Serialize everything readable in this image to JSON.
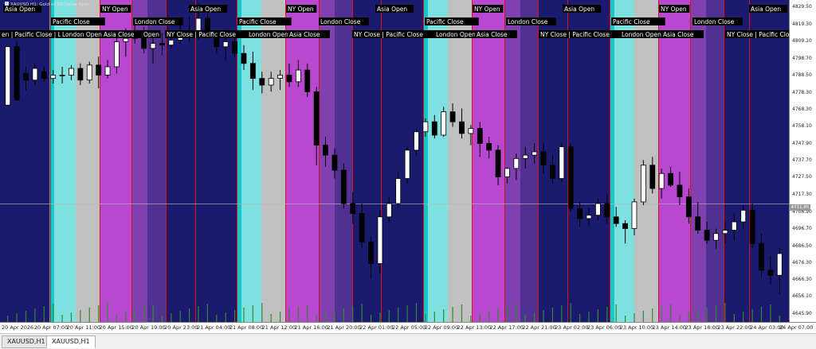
{
  "title": "XAUUSD.H1: Gold vs US Dollar Spot",
  "tabs": [
    {
      "label": "XAUUSD,H1",
      "active": false
    },
    {
      "label": "XAUUSD,H1",
      "active": true
    }
  ],
  "price_marker": "4711.85",
  "session_labels": [
    "Asia Open",
    "Pacific Close",
    "NY Open",
    "London Close",
    "Asia Open",
    "NY Open",
    "Pacific Close",
    "London Close",
    "Asia Open",
    "NY Open",
    "Pacific Close",
    "London Close",
    "Asia Open",
    "NY Open",
    "Pacific Close",
    "London Close",
    "Asia Open",
    "en | Pacific Close | L",
    "London Open",
    "Asia Close",
    "Open",
    "NY Close | Pacific Close",
    "London Open",
    "Asia Close",
    "NY Close | Pacific Close",
    "London Open",
    "Asia Close",
    "NY Close | Pacific Close",
    "London Open",
    "Asia Close",
    "NY Close | Pacific Close"
  ],
  "colors": {
    "background": "#1a1a6e",
    "cyan": "#18c8c8",
    "light_cyan": "#7fe0e0",
    "gray": "#c0c0c0",
    "magenta": "#b848d0",
    "purple": "#8040b0",
    "dark_purple": "#503090",
    "session_line": "#e01010",
    "volume": "#2e8b2e",
    "bull": "#ffffff",
    "bear": "#000000"
  },
  "chart_data": {
    "type": "candlestick",
    "title": "XAUUSD.H1: Gold vs US Dollar Spot",
    "yticks": [
      "4829.50",
      "4819.30",
      "4809.10",
      "4798.70",
      "4788.50",
      "4778.30",
      "4768.30",
      "4758.10",
      "4747.90",
      "4737.70",
      "4727.50",
      "4717.30",
      "4706.90",
      "4696.70",
      "4686.50",
      "4676.30",
      "4666.30",
      "4656.10",
      "4645.90"
    ],
    "xticks": [
      "20 Apr 2026",
      "20 Apr 07:00",
      "20 Apr 11:00",
      "20 Apr 15:00",
      "20 Apr 19:00",
      "20 Apr 23:00",
      "21 Apr 04:00",
      "21 Apr 08:00",
      "21 Apr 12:00",
      "21 Apr 16:00",
      "21 Apr 20:00",
      "22 Apr 01:00",
      "22 Apr 05:00",
      "22 Apr 09:00",
      "22 Apr 13:00",
      "22 Apr 17:00",
      "22 Apr 21:00",
      "23 Apr 02:00",
      "23 Apr 06:00",
      "23 Apr 10:00",
      "23 Apr 14:00",
      "23 Apr 18:00",
      "23 Apr 22:00",
      "24 Apr 03:00",
      "24 Apr 07:00"
    ],
    "current_price": 4711.85,
    "ylim": [
      4641,
      4834
    ],
    "candles": [
      [
        4771,
        4806,
        4771,
        4806
      ],
      [
        4806,
        4809,
        4774,
        4774
      ],
      [
        4790,
        4794,
        4780,
        4786
      ],
      [
        4786,
        4796,
        4783,
        4793
      ],
      [
        4791,
        4794,
        4785,
        4787
      ],
      [
        4787,
        4792,
        4784,
        4789
      ],
      [
        4789,
        4794,
        4784,
        4789
      ],
      [
        4789,
        4795,
        4786,
        4793
      ],
      [
        4793,
        4796,
        4783,
        4786
      ],
      [
        4786,
        4797,
        4784,
        4795
      ],
      [
        4795,
        4800,
        4781,
        4789
      ],
      [
        4789,
        4798,
        4787,
        4794
      ],
      [
        4794,
        4812,
        4790,
        4809
      ],
      [
        4809,
        4817,
        4800,
        4811
      ],
      [
        4811,
        4819,
        4808,
        4815
      ],
      [
        4815,
        4818,
        4802,
        4805
      ],
      [
        4805,
        4811,
        4796,
        4808
      ],
      [
        4808,
        4814,
        4801,
        4807
      ],
      [
        4807,
        4813,
        4805,
        4810
      ],
      [
        4810,
        4820,
        4808,
        4815
      ],
      [
        4815,
        4824,
        4809,
        4812
      ],
      [
        4812,
        4832,
        4810,
        4823
      ],
      [
        4823,
        4826,
        4812,
        4814
      ],
      [
        4814,
        4816,
        4802,
        4806
      ],
      [
        4806,
        4816,
        4798,
        4809
      ],
      [
        4809,
        4814,
        4800,
        4802
      ],
      [
        4802,
        4807,
        4792,
        4796
      ],
      [
        4796,
        4803,
        4780,
        4787
      ],
      [
        4787,
        4791,
        4778,
        4783
      ],
      [
        4783,
        4791,
        4779,
        4787
      ],
      [
        4787,
        4792,
        4780,
        4789
      ],
      [
        4789,
        4796,
        4782,
        4785
      ],
      [
        4785,
        4798,
        4782,
        4792
      ],
      [
        4792,
        4796,
        4776,
        4779
      ],
      [
        4779,
        4782,
        4735,
        4747
      ],
      [
        4747,
        4752,
        4734,
        4741
      ],
      [
        4741,
        4745,
        4727,
        4732
      ],
      [
        4732,
        4736,
        4709,
        4712
      ],
      [
        4712,
        4719,
        4700,
        4706
      ],
      [
        4706,
        4712,
        4685,
        4689
      ],
      [
        4689,
        4692,
        4667,
        4676
      ],
      [
        4676,
        4708,
        4670,
        4704
      ],
      [
        4704,
        4716,
        4701,
        4712
      ],
      [
        4712,
        4731,
        4710,
        4727
      ],
      [
        4727,
        4746,
        4724,
        4744
      ],
      [
        4744,
        4757,
        4741,
        4755
      ],
      [
        4755,
        4763,
        4752,
        4761
      ],
      [
        4761,
        4765,
        4751,
        4753
      ],
      [
        4753,
        4770,
        4752,
        4767
      ],
      [
        4767,
        4772,
        4758,
        4761
      ],
      [
        4761,
        4769,
        4751,
        4754
      ],
      [
        4754,
        4759,
        4747,
        4757
      ],
      [
        4757,
        4761,
        4740,
        4748
      ],
      [
        4748,
        4752,
        4739,
        4744
      ],
      [
        4744,
        4747,
        4723,
        4728
      ],
      [
        4728,
        4734,
        4724,
        4733
      ],
      [
        4733,
        4742,
        4726,
        4739
      ],
      [
        4739,
        4746,
        4733,
        4741
      ],
      [
        4741,
        4748,
        4736,
        4743
      ],
      [
        4743,
        4748,
        4730,
        4735
      ],
      [
        4735,
        4741,
        4724,
        4727
      ],
      [
        4727,
        4748,
        4725,
        4746
      ],
      [
        4746,
        4748,
        4707,
        4709
      ],
      [
        4709,
        4713,
        4698,
        4703
      ],
      [
        4703,
        4709,
        4699,
        4705
      ],
      [
        4705,
        4715,
        4702,
        4712
      ],
      [
        4712,
        4718,
        4700,
        4704
      ],
      [
        4704,
        4710,
        4698,
        4700
      ],
      [
        4700,
        4702,
        4688,
        4697
      ],
      [
        4697,
        4715,
        4693,
        4713
      ],
      [
        4713,
        4738,
        4711,
        4735
      ],
      [
        4735,
        4740,
        4718,
        4721
      ],
      [
        4721,
        4733,
        4715,
        4730
      ],
      [
        4730,
        4734,
        4722,
        4723
      ],
      [
        4723,
        4731,
        4711,
        4716
      ],
      [
        4716,
        4721,
        4700,
        4704
      ],
      [
        4704,
        4713,
        4694,
        4696
      ],
      [
        4696,
        4701,
        4688,
        4690
      ],
      [
        4690,
        4697,
        4685,
        4694
      ],
      [
        4694,
        4701,
        4688,
        4696
      ],
      [
        4696,
        4706,
        4690,
        4701
      ],
      [
        4701,
        4711,
        4697,
        4708
      ],
      [
        4708,
        4712,
        4685,
        4688
      ],
      [
        4688,
        4694,
        4668,
        4672
      ],
      [
        4672,
        4681,
        4663,
        4669
      ],
      [
        4669,
        4685,
        4658,
        4682
      ]
    ]
  }
}
